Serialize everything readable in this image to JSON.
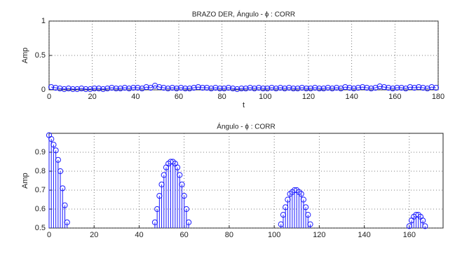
{
  "chart_data": [
    {
      "type": "line",
      "title": "BRAZO DER, Ángulo - ϕ : CORR",
      "xlabel": "t",
      "ylabel": "Amp",
      "color": "#1a1aff",
      "marker": "circle",
      "grid": true,
      "xlim": [
        0,
        180
      ],
      "ylim": [
        0,
        1
      ],
      "xticks": [
        0,
        20,
        40,
        60,
        80,
        100,
        120,
        140,
        160,
        180
      ],
      "yticks": [
        0,
        0.5,
        1
      ],
      "x": [
        1,
        3,
        5,
        7,
        9,
        11,
        13,
        15,
        17,
        19,
        21,
        23,
        25,
        27,
        29,
        31,
        33,
        35,
        37,
        39,
        41,
        43,
        45,
        47,
        49,
        51,
        53,
        55,
        57,
        59,
        61,
        63,
        65,
        67,
        69,
        71,
        73,
        75,
        77,
        79,
        81,
        83,
        85,
        87,
        89,
        91,
        93,
        95,
        97,
        99,
        101,
        103,
        105,
        107,
        109,
        111,
        113,
        115,
        117,
        119,
        121,
        123,
        125,
        127,
        129,
        131,
        133,
        135,
        137,
        139,
        141,
        143,
        145,
        147,
        149,
        151,
        153,
        155,
        157,
        159,
        161,
        163,
        165,
        167,
        169,
        171,
        173,
        175,
        177,
        179
      ],
      "values": [
        0.04,
        0.03,
        0.02,
        0.01,
        0.02,
        0.01,
        0.01,
        0.02,
        0.01,
        0.01,
        0.02,
        0.02,
        0.01,
        0.02,
        0.03,
        0.02,
        0.02,
        0.03,
        0.02,
        0.03,
        0.03,
        0.02,
        0.04,
        0.03,
        0.06,
        0.04,
        0.03,
        0.02,
        0.03,
        0.02,
        0.03,
        0.02,
        0.02,
        0.03,
        0.04,
        0.03,
        0.03,
        0.02,
        0.03,
        0.02,
        0.02,
        0.03,
        0.02,
        0.01,
        0.02,
        0.02,
        0.03,
        0.02,
        0.03,
        0.02,
        0.02,
        0.03,
        0.02,
        0.03,
        0.02,
        0.03,
        0.02,
        0.02,
        0.03,
        0.02,
        0.02,
        0.03,
        0.02,
        0.02,
        0.03,
        0.02,
        0.03,
        0.02,
        0.04,
        0.03,
        0.02,
        0.03,
        0.04,
        0.03,
        0.02,
        0.03,
        0.05,
        0.04,
        0.03,
        0.02,
        0.03,
        0.03,
        0.02,
        0.04,
        0.03,
        0.04,
        0.03,
        0.02,
        0.04,
        0.03
      ]
    },
    {
      "type": "stem",
      "title": "Ángulo - ϕ : CORR",
      "ylabel": "Amp",
      "color": "#1a1aff",
      "marker": "circle",
      "grid": true,
      "xlim": [
        0,
        175
      ],
      "ylim": [
        0.5,
        1
      ],
      "xticks": [
        0,
        20,
        40,
        60,
        80,
        100,
        120,
        140,
        160
      ],
      "yticks": [
        0.5,
        0.6,
        0.7,
        0.8,
        0.9
      ],
      "x": [
        0,
        1,
        2,
        3,
        4,
        5,
        6,
        7,
        8,
        47,
        48,
        49,
        50,
        51,
        52,
        53,
        54,
        55,
        56,
        57,
        58,
        59,
        60,
        61,
        62,
        103,
        104,
        105,
        106,
        107,
        108,
        109,
        110,
        111,
        112,
        113,
        114,
        115,
        116,
        160,
        161,
        162,
        163,
        164,
        165,
        166,
        167
      ],
      "values": [
        0.99,
        0.97,
        0.94,
        0.91,
        0.86,
        0.8,
        0.71,
        0.62,
        0.53,
        0.53,
        0.6,
        0.67,
        0.73,
        0.78,
        0.82,
        0.84,
        0.85,
        0.85,
        0.84,
        0.82,
        0.78,
        0.73,
        0.67,
        0.6,
        0.53,
        0.52,
        0.57,
        0.61,
        0.65,
        0.68,
        0.69,
        0.7,
        0.7,
        0.69,
        0.68,
        0.65,
        0.61,
        0.57,
        0.52,
        0.51,
        0.54,
        0.56,
        0.57,
        0.57,
        0.56,
        0.54,
        0.51
      ]
    }
  ]
}
